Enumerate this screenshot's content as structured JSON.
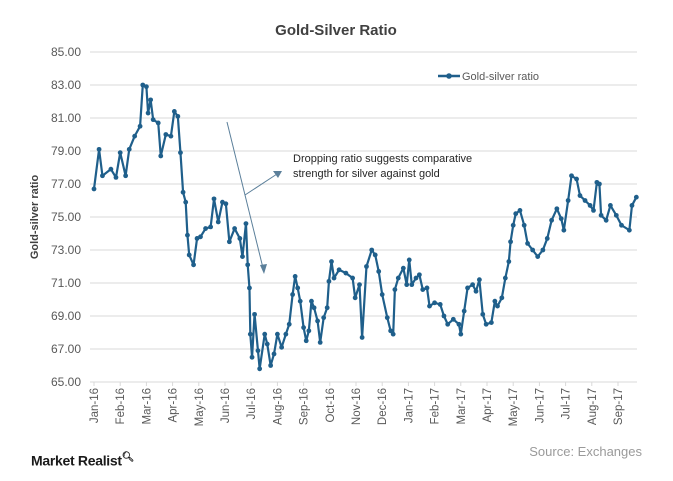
{
  "chart_data": {
    "type": "line",
    "title": "Gold-Silver Ratio",
    "xlabel": "",
    "ylabel": "Gold-silver ratio",
    "ylim": [
      65,
      85
    ],
    "y_ticks": [
      "65.00",
      "67.00",
      "69.00",
      "71.00",
      "73.00",
      "75.00",
      "77.00",
      "79.00",
      "81.00",
      "83.00",
      "85.00"
    ],
    "x_ticks": [
      "Jan-16",
      "Feb-16",
      "Mar-16",
      "Apr-16",
      "May-16",
      "Jun-16",
      "Jul-16",
      "Aug-16",
      "Sep-16",
      "Oct-16",
      "Nov-16",
      "Dec-16",
      "Jan-17",
      "Feb-17",
      "Mar-17",
      "Apr-17",
      "May-17",
      "Jun-17",
      "Jul-17",
      "Aug-17",
      "Sep-17"
    ],
    "grid": "horizontal",
    "legend_position": "top-right",
    "line_color": "#1f5f8b",
    "series": [
      {
        "name": "Gold-silver ratio",
        "x": [
          "2016-01-01",
          "2016-01-07",
          "2016-01-11",
          "2016-01-21",
          "2016-01-27",
          "2016-02-01",
          "2016-02-07",
          "2016-02-11",
          "2016-02-17",
          "2016-02-23",
          "2016-02-26",
          "2016-03-01",
          "2016-03-03",
          "2016-03-06",
          "2016-03-09",
          "2016-03-15",
          "2016-03-18",
          "2016-03-24",
          "2016-03-30",
          "2016-04-03",
          "2016-04-07",
          "2016-04-10",
          "2016-04-13",
          "2016-04-16",
          "2016-04-18",
          "2016-04-20",
          "2016-04-25",
          "2016-04-29",
          "2016-05-03",
          "2016-05-09",
          "2016-05-15",
          "2016-05-19",
          "2016-05-24",
          "2016-05-29",
          "2016-06-02",
          "2016-06-06",
          "2016-06-12",
          "2016-06-18",
          "2016-06-21",
          "2016-06-25",
          "2016-06-27",
          "2016-06-29",
          "2016-06-30",
          "2016-07-02",
          "2016-07-05",
          "2016-07-09",
          "2016-07-11",
          "2016-07-17",
          "2016-07-20",
          "2016-07-24",
          "2016-07-28",
          "2016-08-01",
          "2016-08-06",
          "2016-08-11",
          "2016-08-15",
          "2016-08-19",
          "2016-08-22",
          "2016-08-25",
          "2016-08-28",
          "2016-09-01",
          "2016-09-04",
          "2016-09-07",
          "2016-09-10",
          "2016-09-13",
          "2016-09-17",
          "2016-09-20",
          "2016-09-24",
          "2016-09-28",
          "2016-09-30",
          "2016-10-03",
          "2016-10-06",
          "2016-10-12",
          "2016-10-20",
          "2016-10-28",
          "2016-10-31",
          "2016-11-05",
          "2016-11-08",
          "2016-11-13",
          "2016-11-19",
          "2016-11-23",
          "2016-11-27",
          "2016-12-01",
          "2016-12-07",
          "2016-12-11",
          "2016-12-14",
          "2016-12-16",
          "2016-12-20",
          "2016-12-26",
          "2016-12-30",
          "2017-01-02",
          "2017-01-05",
          "2017-01-10",
          "2017-01-14",
          "2017-01-18",
          "2017-01-23",
          "2017-01-26",
          "2017-02-01",
          "2017-02-07",
          "2017-02-11",
          "2017-02-15",
          "2017-02-21",
          "2017-02-27",
          "2017-03-01",
          "2017-03-05",
          "2017-03-09",
          "2017-03-15",
          "2017-03-19",
          "2017-03-23",
          "2017-03-27",
          "2017-03-31",
          "2017-04-06",
          "2017-04-10",
          "2017-04-13",
          "2017-04-18",
          "2017-04-22",
          "2017-04-26",
          "2017-04-28",
          "2017-05-01",
          "2017-05-04",
          "2017-05-09",
          "2017-05-14",
          "2017-05-18",
          "2017-05-24",
          "2017-05-30",
          "2017-06-05",
          "2017-06-10",
          "2017-06-15",
          "2017-06-21",
          "2017-06-26",
          "2017-06-29",
          "2017-07-04",
          "2017-07-08",
          "2017-07-14",
          "2017-07-18",
          "2017-07-24",
          "2017-07-30",
          "2017-08-03",
          "2017-08-07",
          "2017-08-10",
          "2017-08-12",
          "2017-08-18",
          "2017-08-23",
          "2017-08-30",
          "2017-09-05",
          "2017-09-14",
          "2017-09-17",
          "2017-09-22"
        ],
        "values": [
          76.7,
          79.1,
          77.5,
          77.9,
          77.4,
          78.9,
          77.5,
          79.1,
          79.9,
          80.5,
          83.0,
          82.9,
          81.3,
          82.1,
          80.9,
          80.7,
          78.7,
          80.0,
          79.9,
          81.4,
          81.1,
          78.9,
          76.5,
          75.9,
          73.9,
          72.7,
          72.1,
          73.7,
          73.8,
          74.3,
          74.4,
          76.1,
          74.7,
          75.9,
          75.8,
          73.5,
          74.3,
          73.7,
          72.6,
          74.6,
          72.1,
          70.7,
          67.9,
          66.5,
          69.1,
          66.9,
          65.8,
          67.9,
          67.3,
          66.0,
          66.7,
          67.9,
          67.1,
          67.9,
          68.5,
          70.3,
          71.4,
          70.7,
          69.9,
          68.3,
          67.5,
          68.1,
          69.9,
          69.5,
          68.7,
          67.4,
          68.9,
          69.5,
          71.1,
          72.3,
          71.3,
          71.8,
          71.6,
          71.3,
          70.1,
          70.9,
          67.7,
          72.0,
          73.0,
          72.7,
          71.7,
          70.3,
          68.9,
          68.1,
          67.9,
          70.6,
          71.3,
          71.9,
          70.9,
          72.4,
          70.9,
          71.3,
          71.5,
          70.6,
          70.7,
          69.6,
          69.8,
          69.7,
          69.0,
          68.5,
          68.8,
          68.5,
          67.9,
          69.3,
          70.7,
          70.9,
          70.5,
          71.2,
          69.1,
          68.5,
          68.6,
          69.9,
          69.6,
          70.1,
          71.3,
          72.3,
          73.5,
          74.5,
          75.2,
          75.4,
          74.5,
          73.4,
          73.0,
          72.6,
          73.0,
          73.7,
          74.8,
          75.5,
          74.9,
          74.2,
          76.0,
          77.5,
          77.3,
          76.3,
          76.0,
          75.7,
          75.4,
          77.1,
          77.0,
          75.1,
          74.8,
          75.7,
          75.1,
          74.5,
          74.2,
          75.7,
          76.2
        ]
      }
    ],
    "annotations": [
      {
        "lines": [
          "Dropping ratio suggests comparative",
          "strength for silver against gold"
        ]
      }
    ]
  },
  "footer": {
    "logo": "Market Realist",
    "source": "Source: Exchanges"
  }
}
